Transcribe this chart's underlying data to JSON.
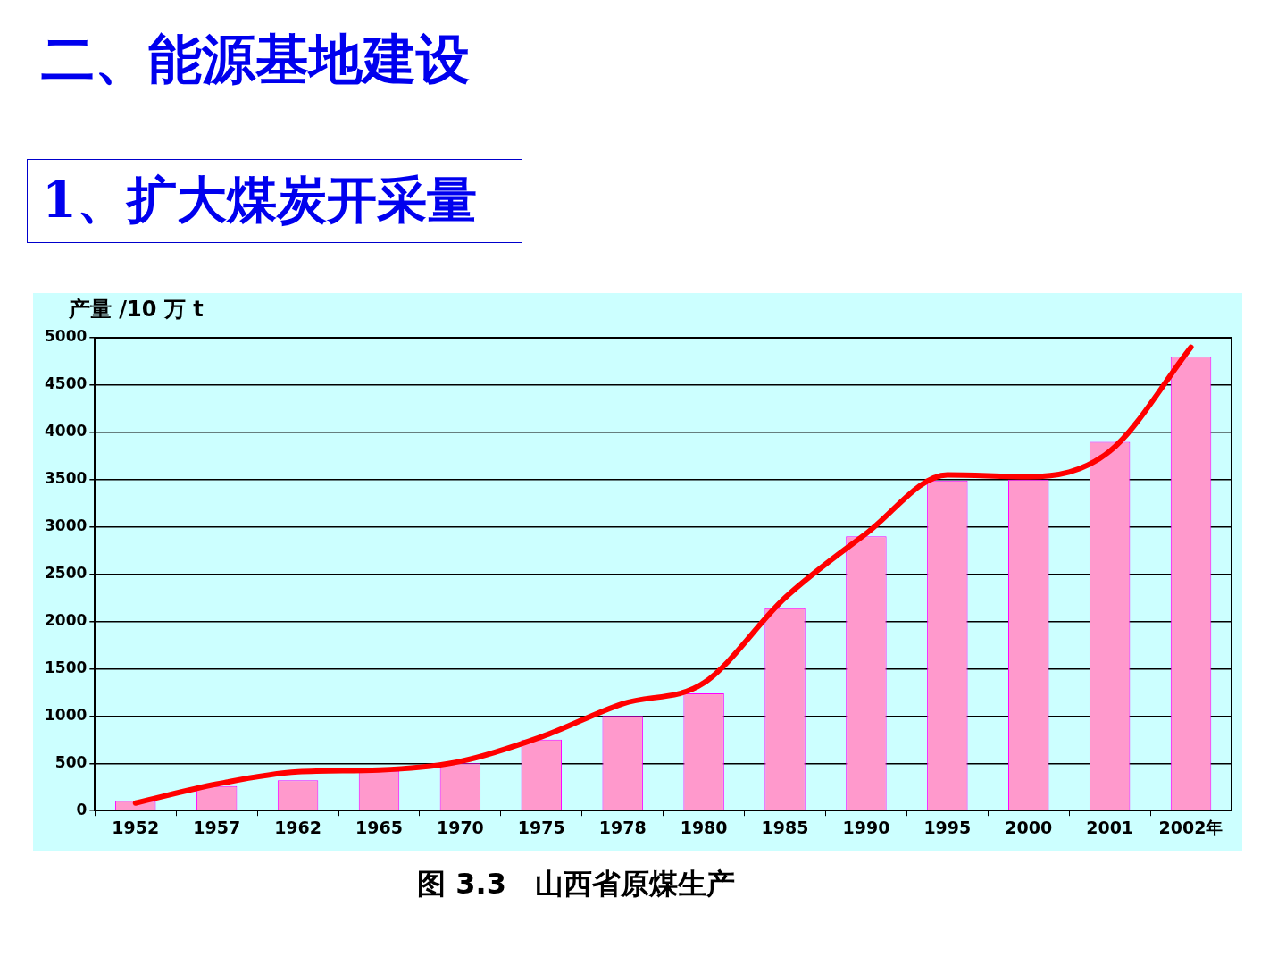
{
  "chart_data": {
    "type": "bar",
    "title": "二、能源基地建设",
    "subtitle": "1、扩大煤炭开采量",
    "ylabel": "产量 /10 万 t",
    "annotations": [
      "图 3.3　山西省原煤生产"
    ],
    "categories": [
      "1952",
      "1957",
      "1962",
      "1965",
      "1970",
      "1975",
      "1978",
      "1980",
      "1985",
      "1990",
      "1995",
      "2000",
      "2001",
      "2002年"
    ],
    "series": [
      {
        "color": "#ff99cc",
        "values": [
          100,
          260,
          320,
          420,
          500,
          750,
          1000,
          1240,
          2140,
          2900,
          3490,
          3500,
          3900,
          4800
        ]
      },
      {
        "type": "line",
        "color": "#ff0000",
        "values": [
          80,
          280,
          410,
          430,
          520,
          780,
          1130,
          1350,
          2250,
          2930,
          3550,
          3530,
          3800,
          4900
        ]
      }
    ],
    "ylim": [
      0,
      5000
    ],
    "yticks": [
      0,
      500,
      1000,
      1500,
      2000,
      2500,
      3000,
      3500,
      4000,
      4500,
      5000
    ],
    "grid": "y",
    "legend": false
  }
}
